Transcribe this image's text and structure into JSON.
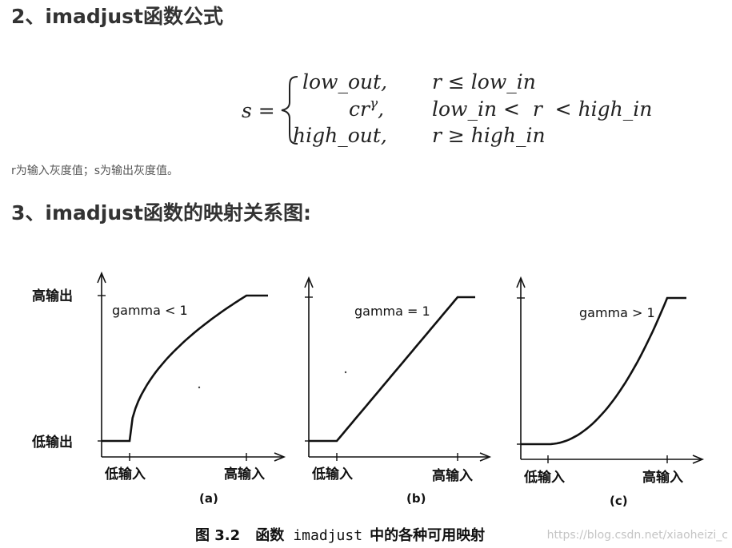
{
  "sections": [
    {
      "heading": "2、imadjust函数公式"
    },
    {
      "heading": "3、imadjust函数的映射关系图:"
    }
  ],
  "formula": {
    "lhs": "s =",
    "cases": [
      {
        "value": "low_out,",
        "condition": "r ≤ low_in"
      },
      {
        "value": "cr",
        "superscript": "γ",
        "value_suffix": ",",
        "condition": "low_in <  r  < high_in"
      },
      {
        "value": "high_out,",
        "condition": "r ≥ high_in"
      }
    ]
  },
  "note": "r为输入灰度值；s为输出灰度值。",
  "figure": {
    "y_high_label": "高输出",
    "y_low_label": "低输出",
    "x_low_label": "低输入",
    "x_high_label": "高输入",
    "panels": [
      {
        "annotation": "gamma < 1",
        "sublabel": "(a)",
        "gamma": 0.5
      },
      {
        "annotation": "gamma = 1",
        "sublabel": "(b)",
        "gamma": 1
      },
      {
        "annotation": "gamma > 1",
        "sublabel": "(c)",
        "gamma": 2
      }
    ],
    "caption_prefix": "图 3.2",
    "caption_word": "函数",
    "caption_code": "imadjust",
    "caption_suffix": "中的各种可用映射",
    "watermark": "https://blog.csdn.net/xiaoheizi_c"
  },
  "colors": {
    "heading": "#333333",
    "figure_ink": "#111111",
    "watermark": "#c4c4c4"
  }
}
